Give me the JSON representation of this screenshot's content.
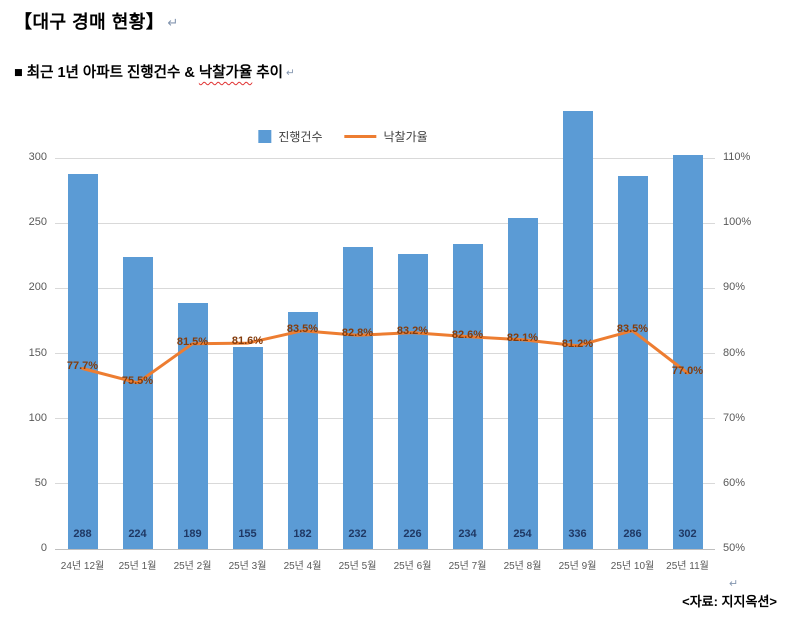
{
  "doc": {
    "title": "【대구 경매 현황】",
    "subtitle_prefix": "■ 최근 1년 아파트 진행건수 & ",
    "subtitle_spell": "낙찰가율",
    "subtitle_suffix": " 추이",
    "source": "<자료: 지지옥션>",
    "paragraph_mark": "↵"
  },
  "chart_data": {
    "type": "bar+line combo",
    "title": "",
    "categories": [
      "24년 12월",
      "25년 1월",
      "25년 2월",
      "25년 3월",
      "25년 4월",
      "25년 5월",
      "25년 6월",
      "25년 7월",
      "25년 8월",
      "25년 9월",
      "25년 10월",
      "25년 11월"
    ],
    "series": [
      {
        "name": "진행건수",
        "type": "bar",
        "axis": "left",
        "color": "#5B9BD5",
        "label_color": "#1F3864",
        "values": [
          288,
          224,
          189,
          155,
          182,
          232,
          226,
          234,
          254,
          336,
          286,
          302
        ]
      },
      {
        "name": "낙찰가율",
        "type": "line",
        "axis": "right",
        "color": "#ED7D31",
        "label_color": "#843C0C",
        "values": [
          77.7,
          75.5,
          81.5,
          81.6,
          83.5,
          82.8,
          83.2,
          82.6,
          82.1,
          81.2,
          83.5,
          77.0
        ],
        "labels": [
          "77.7%",
          "75.5%",
          "81.5%",
          "81.6%",
          "83.5%",
          "82.8%",
          "83.2%",
          "82.6%",
          "82.1%",
          "81.2%",
          "83.5%",
          "77.0%"
        ]
      }
    ],
    "left_axis": {
      "min": 0,
      "max": 300,
      "step": 50,
      "tick_labels": [
        "0",
        "50",
        "100",
        "150",
        "200",
        "250",
        "300"
      ]
    },
    "right_axis": {
      "min": 50,
      "max": 110,
      "step": 10,
      "tick_labels": [
        "50%",
        "60%",
        "70%",
        "80%",
        "90%",
        "100%",
        "110%"
      ]
    },
    "legend": [
      "진행건수",
      "낙찰가율"
    ],
    "legend_position": "top-center",
    "grid": true,
    "grid_color": "#D9D9D9",
    "axis_label_color": "#595959"
  }
}
